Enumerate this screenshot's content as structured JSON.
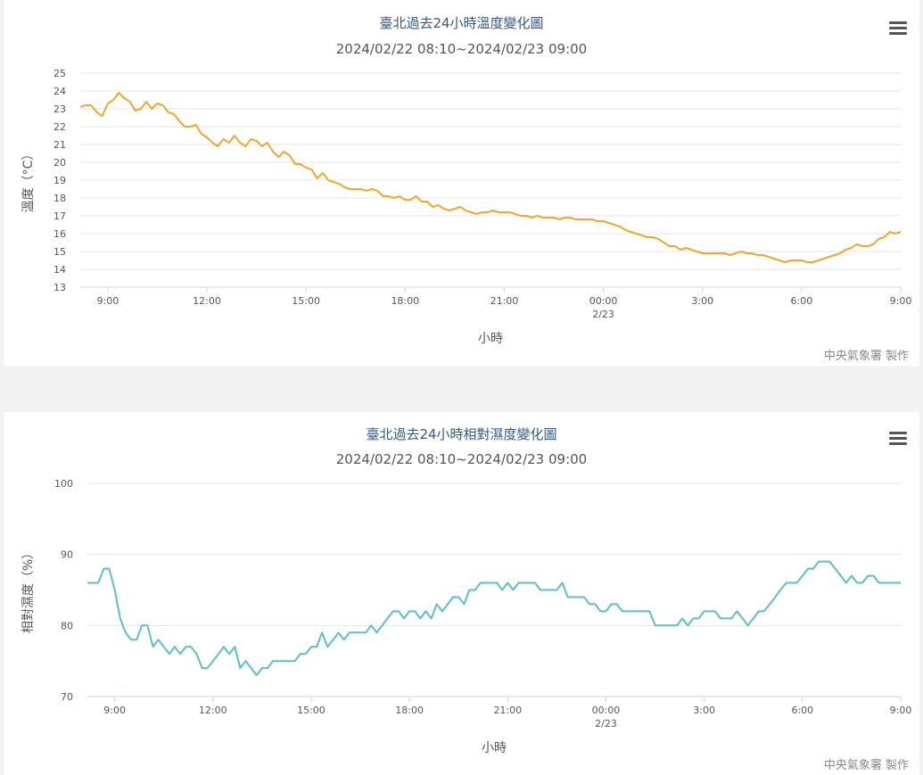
{
  "credit": "中央氣象署 製作",
  "colors": {
    "temp_line": "#f0a830",
    "hum_line": "#5bbfc8",
    "grid": "#e6e6e6",
    "title": "#335a82"
  },
  "icons": {
    "menu": "hamburger-menu-icon"
  },
  "chart_data": [
    {
      "type": "line",
      "title": "臺北過去24小時溫度變化圖",
      "subtitle": "2024/02/22 08:10~2024/02/23 09:00",
      "xlabel": "小時",
      "ylabel": "溫度（°C）",
      "ylim": [
        13,
        25
      ],
      "yticks": [
        13,
        14,
        15,
        16,
        17,
        18,
        19,
        20,
        21,
        22,
        23,
        24,
        25
      ],
      "x_range_hours": [
        8.1667,
        33.0
      ],
      "xticks": [
        {
          "h": 9,
          "label": "9:00"
        },
        {
          "h": 12,
          "label": "12:00"
        },
        {
          "h": 15,
          "label": "15:00"
        },
        {
          "h": 18,
          "label": "18:00"
        },
        {
          "h": 21,
          "label": "21:00"
        },
        {
          "h": 24,
          "label": "00:00",
          "sublabel": "2/23"
        },
        {
          "h": 27,
          "label": "3:00"
        },
        {
          "h": 30,
          "label": "6:00"
        },
        {
          "h": 33,
          "label": "9:00"
        }
      ],
      "grid": true,
      "series": [
        {
          "x": [
            8.17,
            8.33,
            8.5,
            8.67,
            8.83,
            9.0,
            9.17,
            9.33,
            9.5,
            9.67,
            9.83,
            10.0,
            10.17,
            10.33,
            10.5,
            10.67,
            10.83,
            11.0,
            11.17,
            11.33,
            11.5,
            11.67,
            11.83,
            12.0,
            12.17,
            12.33,
            12.5,
            12.67,
            12.83,
            13.0,
            13.17,
            13.33,
            13.5,
            13.67,
            13.83,
            14.0,
            14.17,
            14.33,
            14.5,
            14.67,
            14.83,
            15.0,
            15.17,
            15.33,
            15.5,
            15.67,
            15.83,
            16.0,
            16.17,
            16.33,
            16.5,
            16.67,
            16.83,
            17.0,
            17.17,
            17.33,
            17.5,
            17.67,
            17.83,
            18.0,
            18.17,
            18.33,
            18.5,
            18.67,
            18.83,
            19.0,
            19.17,
            19.33,
            19.5,
            19.67,
            19.83,
            20.0,
            20.17,
            20.33,
            20.5,
            20.67,
            20.83,
            21.0,
            21.17,
            21.33,
            21.5,
            21.67,
            21.83,
            22.0,
            22.17,
            22.33,
            22.5,
            22.67,
            22.83,
            23.0,
            23.17,
            23.33,
            23.5,
            23.67,
            23.83,
            24.0,
            24.17,
            24.33,
            24.5,
            24.67,
            24.83,
            25.0,
            25.17,
            25.33,
            25.5,
            25.67,
            25.83,
            26.0,
            26.17,
            26.33,
            26.5,
            26.67,
            26.83,
            27.0,
            27.17,
            27.33,
            27.5,
            27.67,
            27.83,
            28.0,
            28.17,
            28.33,
            28.5,
            28.67,
            28.83,
            29.0,
            29.17,
            29.33,
            29.5,
            29.67,
            29.83,
            30.0,
            30.17,
            30.33,
            30.5,
            30.67,
            30.83,
            31.0,
            31.17,
            31.33,
            31.5,
            31.67,
            31.83,
            32.0,
            32.17,
            32.33,
            32.5,
            32.67,
            32.83,
            33.0
          ],
          "y": [
            23.1,
            23.2,
            23.2,
            22.8,
            22.6,
            23.3,
            23.5,
            23.9,
            23.6,
            23.4,
            22.9,
            23.0,
            23.4,
            23.0,
            23.3,
            23.2,
            22.8,
            22.7,
            22.3,
            22.0,
            22.0,
            22.1,
            21.6,
            21.4,
            21.1,
            20.9,
            21.3,
            21.1,
            21.5,
            21.1,
            20.9,
            21.3,
            21.2,
            20.9,
            21.1,
            20.6,
            20.3,
            20.6,
            20.4,
            19.9,
            19.9,
            19.7,
            19.6,
            19.1,
            19.4,
            19.0,
            18.9,
            18.8,
            18.6,
            18.5,
            18.5,
            18.5,
            18.4,
            18.5,
            18.4,
            18.1,
            18.1,
            18.0,
            18.1,
            17.9,
            17.9,
            18.1,
            17.8,
            17.8,
            17.5,
            17.6,
            17.4,
            17.3,
            17.4,
            17.5,
            17.3,
            17.2,
            17.1,
            17.2,
            17.2,
            17.3,
            17.2,
            17.2,
            17.2,
            17.1,
            17.0,
            17.0,
            16.9,
            17.0,
            16.9,
            16.9,
            16.9,
            16.8,
            16.9,
            16.9,
            16.8,
            16.8,
            16.8,
            16.8,
            16.7,
            16.7,
            16.6,
            16.5,
            16.4,
            16.2,
            16.1,
            16.0,
            15.9,
            15.8,
            15.8,
            15.7,
            15.5,
            15.3,
            15.3,
            15.1,
            15.2,
            15.1,
            15.0,
            14.9,
            14.9,
            14.9,
            14.9,
            14.9,
            14.8,
            14.9,
            15.0,
            14.9,
            14.9,
            14.8,
            14.8,
            14.7,
            14.6,
            14.5,
            14.4,
            14.5,
            14.5,
            14.5,
            14.4,
            14.4,
            14.5,
            14.6,
            14.7,
            14.8,
            14.9,
            15.1,
            15.2,
            15.4,
            15.3,
            15.3,
            15.4,
            15.7,
            15.8,
            16.1,
            16.0,
            16.1
          ]
        }
      ]
    },
    {
      "type": "line",
      "title": "臺北過去24小時相對濕度變化圖",
      "subtitle": "2024/02/22 08:10~2024/02/23 09:00",
      "xlabel": "小時",
      "ylabel": "相對濕度（%）",
      "ylim": [
        70,
        100
      ],
      "yticks": [
        70,
        80,
        90,
        100
      ],
      "x_range_hours": [
        8.1667,
        33.0
      ],
      "xticks": [
        {
          "h": 9,
          "label": "9:00"
        },
        {
          "h": 12,
          "label": "12:00"
        },
        {
          "h": 15,
          "label": "15:00"
        },
        {
          "h": 18,
          "label": "18:00"
        },
        {
          "h": 21,
          "label": "21:00"
        },
        {
          "h": 24,
          "label": "00:00",
          "sublabel": "2/23"
        },
        {
          "h": 27,
          "label": "3:00"
        },
        {
          "h": 30,
          "label": "6:00"
        },
        {
          "h": 33,
          "label": "9:00"
        }
      ],
      "grid": true,
      "series": [
        {
          "x": [
            8.17,
            8.33,
            8.5,
            8.67,
            8.83,
            9.0,
            9.17,
            9.33,
            9.5,
            9.67,
            9.83,
            10.0,
            10.17,
            10.33,
            10.5,
            10.67,
            10.83,
            11.0,
            11.17,
            11.33,
            11.5,
            11.67,
            11.83,
            12.0,
            12.17,
            12.33,
            12.5,
            12.67,
            12.83,
            13.0,
            13.17,
            13.33,
            13.5,
            13.67,
            13.83,
            14.0,
            14.17,
            14.33,
            14.5,
            14.67,
            14.83,
            15.0,
            15.17,
            15.33,
            15.5,
            15.67,
            15.83,
            16.0,
            16.17,
            16.33,
            16.5,
            16.67,
            16.83,
            17.0,
            17.17,
            17.33,
            17.5,
            17.67,
            17.83,
            18.0,
            18.17,
            18.33,
            18.5,
            18.67,
            18.83,
            19.0,
            19.17,
            19.33,
            19.5,
            19.67,
            19.83,
            20.0,
            20.17,
            20.33,
            20.5,
            20.67,
            20.83,
            21.0,
            21.17,
            21.33,
            21.5,
            21.67,
            21.83,
            22.0,
            22.17,
            22.33,
            22.5,
            22.67,
            22.83,
            23.0,
            23.17,
            23.33,
            23.5,
            23.67,
            23.83,
            24.0,
            24.17,
            24.33,
            24.5,
            24.67,
            24.83,
            25.0,
            25.17,
            25.33,
            25.5,
            25.67,
            25.83,
            26.0,
            26.17,
            26.33,
            26.5,
            26.67,
            26.83,
            27.0,
            27.17,
            27.33,
            27.5,
            27.67,
            27.83,
            28.0,
            28.17,
            28.33,
            28.5,
            28.67,
            28.83,
            29.0,
            29.17,
            29.33,
            29.5,
            29.67,
            29.83,
            30.0,
            30.17,
            30.33,
            30.5,
            30.67,
            30.83,
            31.0,
            31.17,
            31.33,
            31.5,
            31.67,
            31.83,
            32.0,
            32.17,
            32.33,
            32.5,
            32.67,
            32.83,
            33.0
          ],
          "y": [
            86,
            86,
            86,
            88,
            88,
            85,
            81,
            79,
            78,
            78,
            80,
            80,
            77,
            78,
            77,
            76,
            77,
            76,
            77,
            77,
            76,
            74,
            74,
            75,
            76,
            77,
            76,
            77,
            74,
            75,
            74,
            73,
            74,
            74,
            75,
            75,
            75,
            75,
            75,
            76,
            76,
            77,
            77,
            79,
            77,
            78,
            79,
            78,
            79,
            79,
            79,
            79,
            80,
            79,
            80,
            81,
            82,
            82,
            81,
            82,
            82,
            81,
            82,
            81,
            83,
            82,
            83,
            84,
            84,
            83,
            85,
            85,
            86,
            86,
            86,
            86,
            85,
            86,
            85,
            86,
            86,
            86,
            86,
            85,
            85,
            85,
            85,
            86,
            84,
            84,
            84,
            84,
            83,
            83,
            82,
            82,
            83,
            83,
            82,
            82,
            82,
            82,
            82,
            82,
            80,
            80,
            80,
            80,
            80,
            81,
            80,
            81,
            81,
            82,
            82,
            82,
            81,
            81,
            81,
            82,
            81,
            80,
            81,
            82,
            82,
            83,
            84,
            85,
            86,
            86,
            86,
            87,
            88,
            88,
            89,
            89,
            89,
            88,
            87,
            86,
            87,
            86,
            86,
            87,
            87,
            86,
            86,
            86,
            86,
            86
          ]
        }
      ]
    }
  ]
}
